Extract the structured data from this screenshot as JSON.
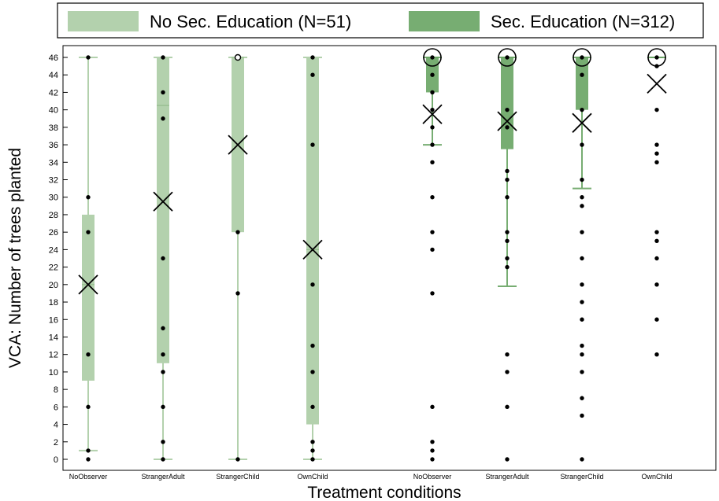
{
  "chart_data": {
    "type": "boxplot",
    "ylabel": "VCA: Number of trees planted",
    "xlabel": "Treatment conditions",
    "ylim": [
      0,
      46
    ],
    "yticks": [
      0,
      2,
      4,
      6,
      8,
      10,
      12,
      14,
      16,
      18,
      20,
      22,
      24,
      26,
      28,
      30,
      32,
      34,
      36,
      38,
      40,
      42,
      44,
      46
    ],
    "legend_position": "top",
    "grid": false,
    "categories": [
      "NoObserver",
      "StrangerAdult",
      "StrangerChild",
      "OwnChild"
    ],
    "series": [
      {
        "name": "No Sec. Education (N=51)",
        "color": "#b3d1ad",
        "boxes": [
          {
            "category": "NoObserver",
            "whisker_low": 1,
            "q1": 9,
            "median": 20,
            "q3": 28,
            "whisker_high": 46,
            "mean": 20,
            "points": [
              0,
              1,
              6,
              12,
              26,
              30,
              46
            ]
          },
          {
            "category": "StrangerAdult",
            "whisker_low": 0,
            "q1": 11,
            "median": 40.5,
            "q3": 46,
            "whisker_high": 46,
            "mean": 29.5,
            "points": [
              0,
              2,
              6,
              10,
              12,
              15,
              23,
              39,
              42,
              46
            ],
            "median_large_circle": false
          },
          {
            "category": "StrangerChild",
            "whisker_low": 0,
            "q1": 26,
            "median": 46,
            "q3": 46,
            "whisker_high": 46,
            "mean": 36,
            "points": [
              0,
              19,
              26,
              46
            ]
          },
          {
            "category": "OwnChild",
            "whisker_low": 0,
            "q1": 4,
            "median": 24,
            "q3": 46,
            "whisker_high": 46,
            "mean": 24,
            "points": [
              0,
              1,
              2,
              6,
              10,
              13,
              20,
              36,
              44,
              46
            ]
          }
        ]
      },
      {
        "name": "Sec. Education (N=312)",
        "color": "#77ad72",
        "boxes": [
          {
            "category": "NoObserver",
            "whisker_low": 36,
            "q1": 42,
            "median": 46,
            "q3": 46,
            "whisker_high": 46,
            "mean": 39.5,
            "points": [
              0,
              1,
              2,
              6,
              19,
              24,
              26,
              30,
              34,
              36,
              38,
              40,
              42,
              44,
              46
            ]
          },
          {
            "category": "StrangerAdult",
            "whisker_low": 19.8,
            "q1": 35.5,
            "median": 46,
            "q3": 46,
            "whisker_high": 46,
            "mean": 38.7,
            "points": [
              0,
              6,
              10,
              12,
              22,
              23,
              25,
              26,
              30,
              32,
              33,
              38,
              40,
              46
            ]
          },
          {
            "category": "StrangerChild",
            "whisker_low": 31,
            "q1": 40,
            "median": 46,
            "q3": 46,
            "whisker_high": 46,
            "mean": 38.5,
            "points": [
              0,
              5,
              7,
              10,
              12,
              13,
              16,
              18,
              20,
              23,
              26,
              29,
              30,
              32,
              36,
              40,
              44,
              46
            ]
          },
          {
            "category": "OwnChild",
            "whisker_low": 46,
            "q1": 46,
            "median": 46,
            "q3": 46,
            "whisker_high": 46,
            "mean": 43,
            "points": [
              12,
              16,
              20,
              23,
              25,
              26,
              34,
              35,
              36,
              40,
              45,
              46
            ]
          }
        ]
      }
    ]
  }
}
